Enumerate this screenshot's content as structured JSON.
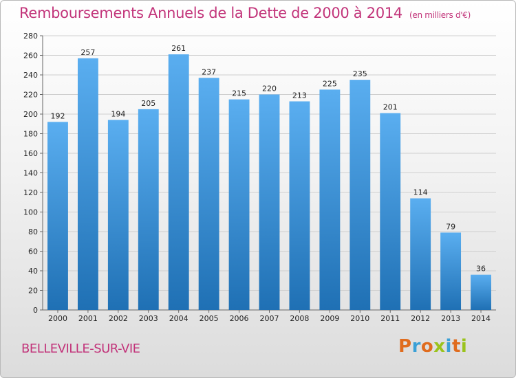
{
  "header": {
    "title": "Remboursements Annuels de la Dette de 2000 à 2014",
    "unit": "(en milliers d'€)"
  },
  "footer": {
    "city": "BELLEVILLE-SUR-VIE",
    "logo": "Proxiti"
  },
  "colors": {
    "title": "#c2347a",
    "bar_top": "#5aaef0",
    "bar_bottom": "#1f70b4",
    "logo_letters": [
      "#e06c1e",
      "#3aa0d6",
      "#e06c1e",
      "#9ac31c",
      "#3aa0d6",
      "#e06c1e",
      "#9ac31c"
    ]
  },
  "chart_data": {
    "type": "bar",
    "title": "Remboursements Annuels de la Dette de 2000 à 2014",
    "subtitle": "(en milliers d'€)",
    "categories": [
      "2000",
      "2001",
      "2002",
      "2003",
      "2004",
      "2005",
      "2006",
      "2007",
      "2008",
      "2009",
      "2010",
      "2011",
      "2012",
      "2013",
      "2014"
    ],
    "values": [
      192,
      257,
      194,
      205,
      261,
      237,
      215,
      220,
      213,
      225,
      235,
      201,
      114,
      79,
      36
    ],
    "xlabel": "",
    "ylabel": "",
    "ylim": [
      0,
      280
    ],
    "yticks": [
      0,
      20,
      40,
      60,
      80,
      100,
      120,
      140,
      160,
      180,
      200,
      220,
      240,
      260,
      280
    ],
    "grid": true,
    "legend": "none"
  }
}
